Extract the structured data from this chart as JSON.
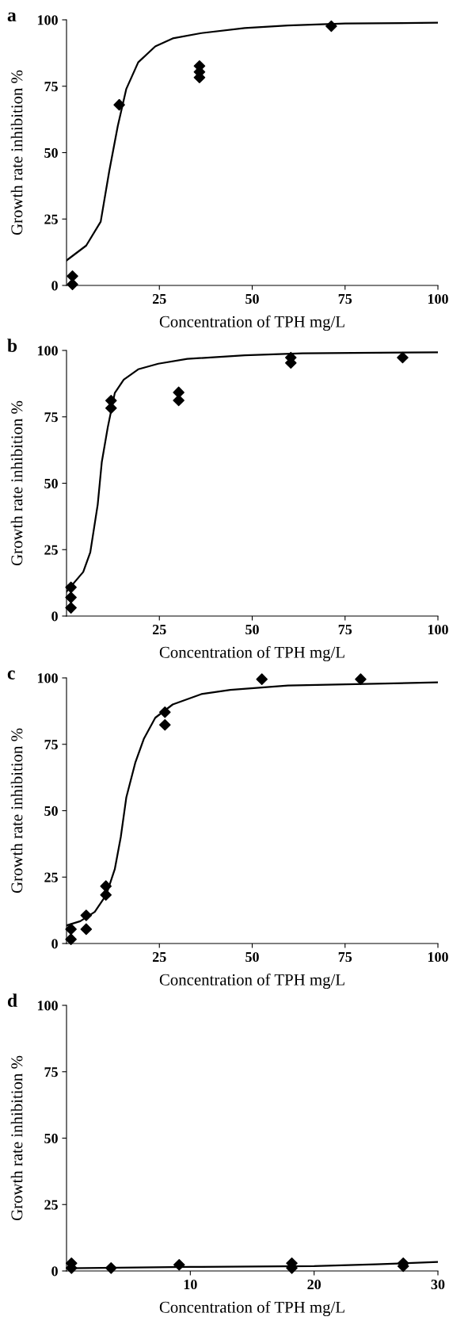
{
  "chart_data": [
    {
      "type": "scatter",
      "title": "a",
      "xlabel": "Concentration of TPH mg/L",
      "ylabel": "Growth rate inhibition %",
      "xlim": [
        0,
        100
      ],
      "ylim": [
        0,
        100
      ],
      "xticks": [
        25,
        50,
        75,
        100
      ],
      "yticks": [
        0,
        25,
        50,
        75,
        100
      ],
      "series": [
        {
          "marker": "diamond",
          "color": "#000000",
          "x": [
            1.6,
            1.6,
            14.2,
            35.8,
            35.8,
            35.8,
            71.3
          ],
          "values": [
            3.5,
            0.4,
            68,
            82.6,
            80.4,
            78.3,
            97.6
          ]
        },
        {
          "type": "line",
          "color": "#000000",
          "x": [
            0,
            5.3,
            9.2,
            11.5,
            13.8,
            16.1,
            19.3,
            23.9,
            28.6,
            36.3,
            48,
            59.6,
            75,
            100
          ],
          "values": [
            9.4,
            15,
            24,
            43,
            60,
            74,
            84,
            90,
            93,
            95,
            96.9,
            97.9,
            98.6,
            98.9
          ]
        }
      ]
    },
    {
      "type": "scatter",
      "title": "b",
      "xlabel": "Concentration of TPH mg/L",
      "ylabel": "Growth rate inhibition %",
      "xlim": [
        0,
        100
      ],
      "ylim": [
        0,
        100
      ],
      "xticks": [
        25,
        50,
        75,
        100
      ],
      "yticks": [
        0,
        25,
        50,
        75,
        100
      ],
      "series": [
        {
          "marker": "diamond",
          "color": "#000000",
          "x": [
            1.2,
            1.2,
            1.2,
            12,
            12,
            30.2,
            30.2,
            60.4,
            60.4,
            90.5
          ],
          "values": [
            10.8,
            7,
            3.1,
            81.1,
            78.3,
            84.2,
            81.2,
            97.3,
            95.3,
            97.3
          ]
        },
        {
          "type": "line",
          "color": "#000000",
          "x": [
            0,
            4.5,
            6.4,
            8.4,
            9.5,
            11.1,
            13,
            15.4,
            19.3,
            24.7,
            32.5,
            48,
            63.5,
            100
          ],
          "values": [
            9.2,
            16.6,
            24,
            42,
            58,
            71,
            84,
            89,
            92.9,
            95,
            96.8,
            98.2,
            98.9,
            99.3
          ]
        }
      ]
    },
    {
      "type": "scatter",
      "title": "c",
      "xlabel": "Concentration of TPH mg/L",
      "ylabel": "Growth rate inhibition %",
      "xlim": [
        0,
        100
      ],
      "ylim": [
        0,
        100
      ],
      "xticks": [
        25,
        50,
        75,
        100
      ],
      "yticks": [
        0,
        25,
        50,
        75,
        100
      ],
      "series": [
        {
          "marker": "diamond",
          "color": "#000000",
          "x": [
            1.2,
            1.2,
            5.3,
            5.3,
            10.6,
            10.6,
            26.5,
            26.5,
            52.6,
            79.2
          ],
          "values": [
            5.4,
            1.6,
            10.6,
            5.4,
            21.6,
            18.3,
            87.1,
            82.3,
            99.5,
            99.5
          ]
        },
        {
          "type": "line",
          "color": "#000000",
          "x": [
            0,
            3.7,
            7.6,
            10.7,
            13,
            14.6,
            16.1,
            18.5,
            20.8,
            23.9,
            28.6,
            36.3,
            44.1,
            59.6,
            100
          ],
          "values": [
            6.8,
            8.4,
            11.9,
            18.3,
            28,
            40,
            55,
            68,
            77,
            85,
            90,
            93.9,
            95.5,
            97.1,
            98.3
          ]
        }
      ]
    },
    {
      "type": "scatter",
      "title": "d",
      "xlabel": "Concentration of TPH mg/L",
      "ylabel": "Growth rate inhibition %",
      "xlim": [
        0,
        30
      ],
      "ylim": [
        0,
        100
      ],
      "xticks": [
        10,
        20,
        30
      ],
      "yticks": [
        0,
        25,
        50,
        75,
        100
      ],
      "series": [
        {
          "marker": "diamond",
          "color": "#000000",
          "x": [
            0.4,
            0.4,
            3.6,
            9.1,
            18.2,
            18.2,
            27.2,
            27.2
          ],
          "values": [
            2.9,
            1.1,
            1.1,
            2.3,
            2.9,
            1.1,
            2.9,
            1.8
          ]
        },
        {
          "type": "line",
          "color": "#000000",
          "x": [
            0,
            10,
            20,
            25,
            30
          ],
          "values": [
            1,
            1.5,
            1.8,
            2.5,
            3.4
          ]
        }
      ]
    }
  ]
}
